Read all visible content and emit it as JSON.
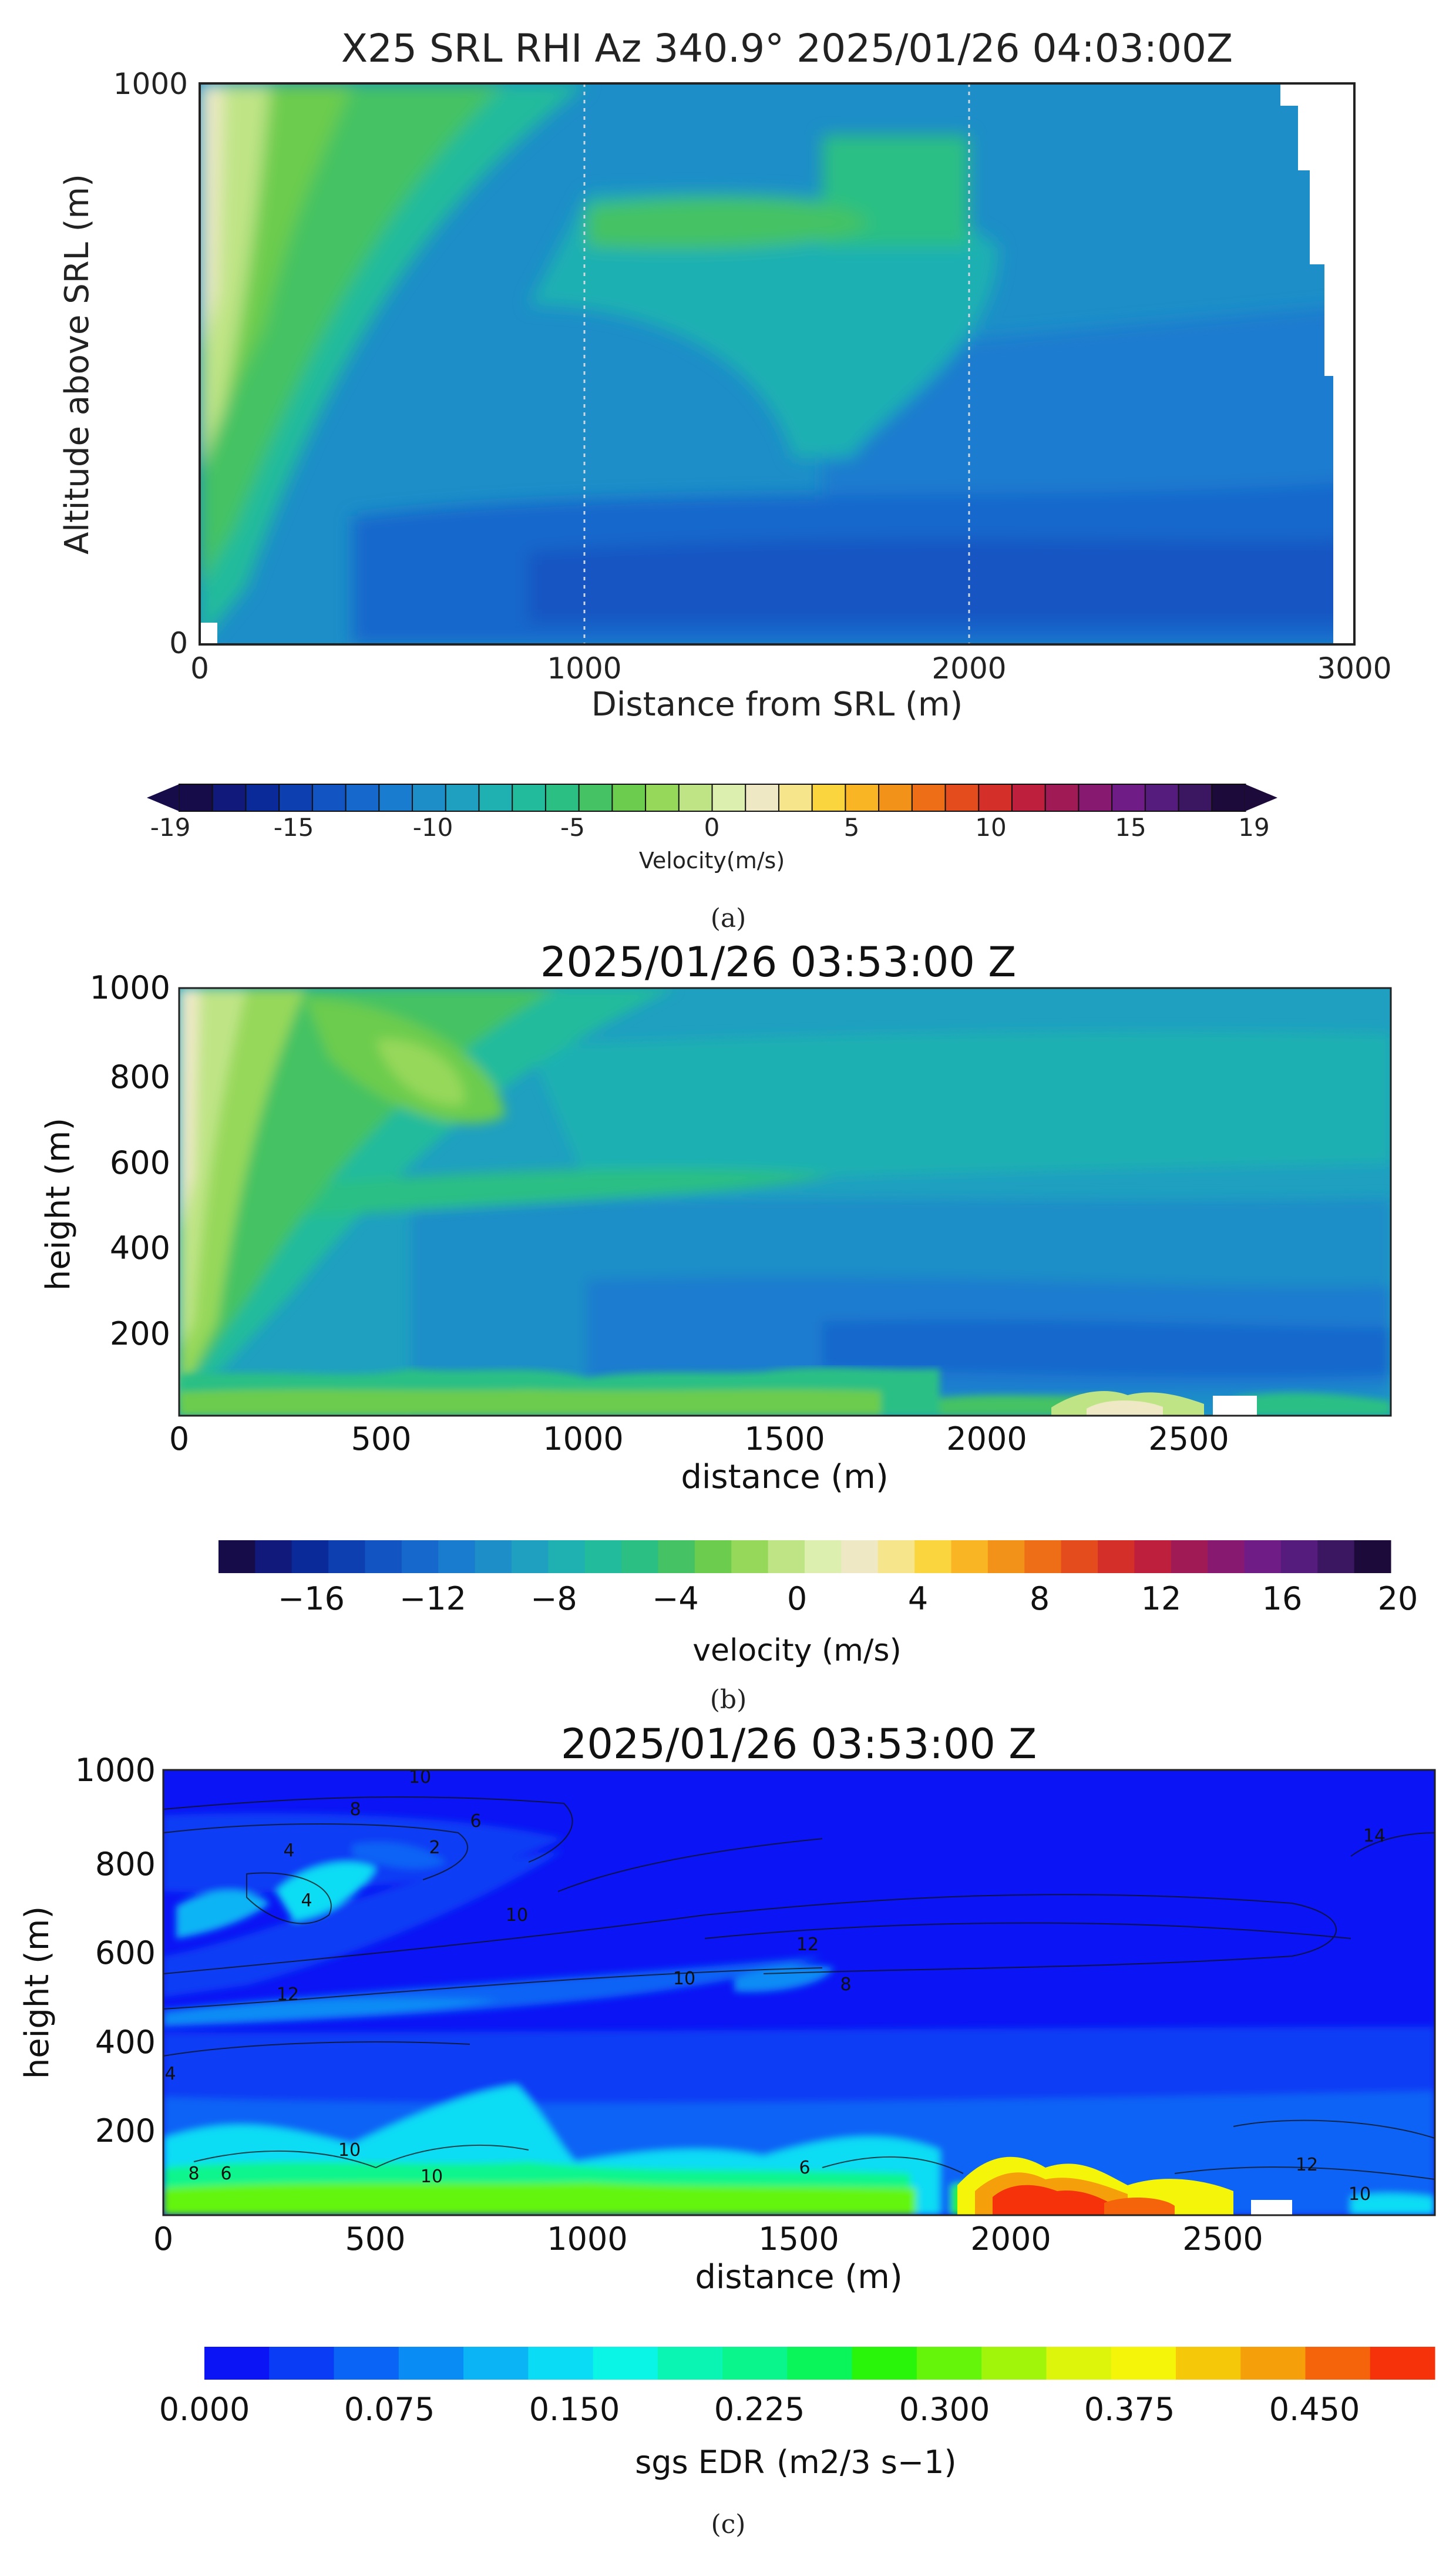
{
  "panel_labels": {
    "a": "(a)",
    "b": "(b)",
    "c": "(c)"
  },
  "chart_data": [
    {
      "type": "heatmap",
      "title": "X25 SRL RHI Az 340.9° 2025/01/26 04:03:00Z",
      "xlabel": "Distance from SRL (m)",
      "ylabel": "Altitude above SRL (m)",
      "xlim": [
        0,
        3000
      ],
      "ylim": [
        0,
        1000
      ],
      "xticks": [
        "0",
        "1000",
        "2000",
        "3000"
      ],
      "yticks": [
        "0",
        "1000"
      ],
      "grid": "dotted vertical lines at 1000 and 2000",
      "colorbar": {
        "label": "Velocity(m/s)",
        "ticks": [
          "-19",
          "-15",
          "-10",
          "-5",
          "0",
          "5",
          "10",
          "15",
          "19"
        ],
        "range": [
          -19,
          19
        ],
        "extend": "both"
      },
      "field_description": "Radial velocity; near-zero (pale) values near x=0, weak negative (green) band sloping from the surface upward to ~1000 m, stronger negative (blue, about -10 to -13 m/s) below 500 m and beyond 2000 m; no data above ~2800 m distance aloft."
    },
    {
      "type": "heatmap",
      "title": "2025/01/26 03:53:00 Z",
      "xlabel": "distance (m)",
      "ylabel": "height (m)",
      "xlim": [
        0,
        3000
      ],
      "ylim": [
        0,
        1000
      ],
      "xticks": [
        "0",
        "500",
        "1000",
        "1500",
        "2000",
        "2500"
      ],
      "yticks": [
        "200",
        "400",
        "600",
        "800",
        "1000"
      ],
      "colorbar": {
        "label": "velocity (m/s)",
        "ticks": [
          "−16",
          "−12",
          "−8",
          "−4",
          "0",
          "4",
          "8",
          "12",
          "16",
          "20"
        ],
        "range": [
          -20,
          20
        ]
      },
      "field_description": "Simulated velocity; pale near-zero values near x=0, green (-4 to -6 m/s) sloping layer reaching ~900 m, blue (-10 to -13 m/s) low-level flow, turbulent green/yellow patches near the ground around 2200–2600 m."
    },
    {
      "type": "heatmap",
      "title": "2025/01/26 03:53:00 Z",
      "xlabel": "distance (m)",
      "ylabel": "height (m)",
      "xlim": [
        0,
        3000
      ],
      "ylim": [
        0,
        1000
      ],
      "xticks": [
        "0",
        "500",
        "1000",
        "1500",
        "2000",
        "2500"
      ],
      "yticks": [
        "200",
        "400",
        "600",
        "800",
        "1000"
      ],
      "colorbar": {
        "label": "sgs EDR",
        "unit": "(m2/3 s−1)",
        "ticks": [
          "0.000",
          "0.075",
          "0.150",
          "0.225",
          "0.300",
          "0.375",
          "0.450"
        ],
        "range": [
          0,
          0.5
        ]
      },
      "contour_labels": [
        "10",
        "8",
        "6",
        "4",
        "2",
        "4",
        "10",
        "12",
        "12",
        "10",
        "8",
        "14",
        "4",
        "6",
        "8",
        "10",
        "10",
        "12",
        "10",
        "6"
      ],
      "field_description": "Subgrid-scale EDR; mostly 0 (blue) aloft with elevated shear layers (~0.05-0.1) near 600-800 m and 420-460 m, high values (0.2-0.5) in the turbulent surface layer below 200 m, peaks near 2000-2400 m; black contours of wind speed overlaid."
    }
  ],
  "colors": {
    "plot_frame": "#000000",
    "velocity_palette": [
      "#160c4a",
      "#111a7a",
      "#0b2a9a",
      "#0d3fb0",
      "#1254c2",
      "#1668cc",
      "#1a7ccf",
      "#1d8ec8",
      "#1fa0c0",
      "#1fb0b2",
      "#22bb9c",
      "#2cbf84",
      "#45c264",
      "#6ccc4e",
      "#96d85a",
      "#bfe486",
      "#dcefae",
      "#eee9c4",
      "#f6e58a",
      "#fbd53e",
      "#f9b523",
      "#f39219",
      "#ed6e17",
      "#e44b1d",
      "#d52f2a",
      "#bd1f3d",
      "#a01a55",
      "#871a70",
      "#6f1c86",
      "#551b7d",
      "#3a1760",
      "#1c0b3a"
    ],
    "edr_palette": [
      "#0a14f5",
      "#0a3cf5",
      "#0a64f5",
      "#0a8cf5",
      "#0ab4f5",
      "#0adcf5",
      "#0af5e6",
      "#0af5b4",
      "#0af58c",
      "#0af55a",
      "#28f50a",
      "#64f50a",
      "#a0f50a",
      "#dcf50a",
      "#f5f50a",
      "#f5c80a",
      "#f5a00a",
      "#f5640a",
      "#f5320a"
    ]
  }
}
